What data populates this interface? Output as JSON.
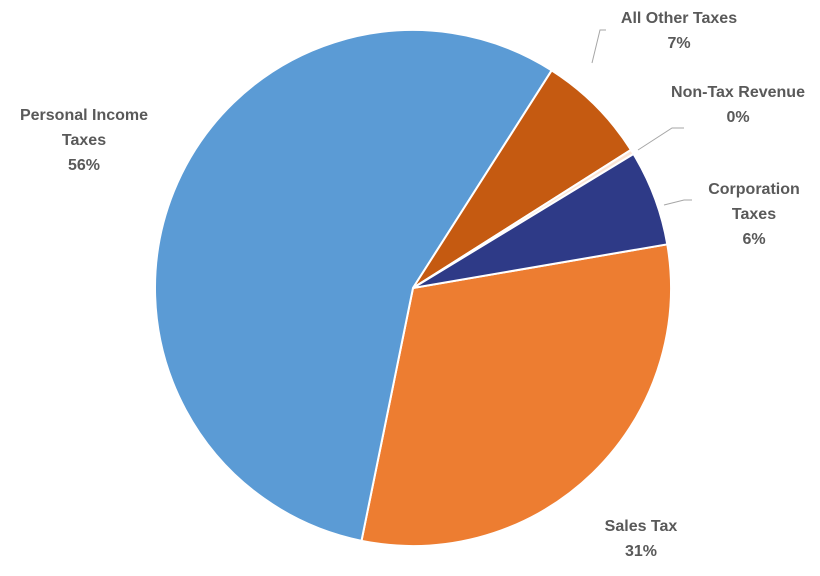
{
  "chart_data": {
    "type": "pie",
    "title": "",
    "slices": [
      {
        "label_lines": [
          "Sales Tax"
        ],
        "pct_label": "31%",
        "value": 31,
        "color": "#ed7d31"
      },
      {
        "label_lines": [
          "Personal Income",
          "Taxes"
        ],
        "pct_label": "56%",
        "value": 56,
        "color": "#5b9bd5"
      },
      {
        "label_lines": [
          "All Other Taxes"
        ],
        "pct_label": "7%",
        "value": 7,
        "color": "#c55a11"
      },
      {
        "label_lines": [
          "Non-Tax Revenue"
        ],
        "pct_label": "0%",
        "value": 0.3,
        "color": "#fbe5d6"
      },
      {
        "label_lines": [
          "Corporation",
          "Taxes"
        ],
        "pct_label": "6%",
        "value": 6,
        "color": "#2e3a87"
      }
    ],
    "legend": "none",
    "data_labels": "outside"
  }
}
